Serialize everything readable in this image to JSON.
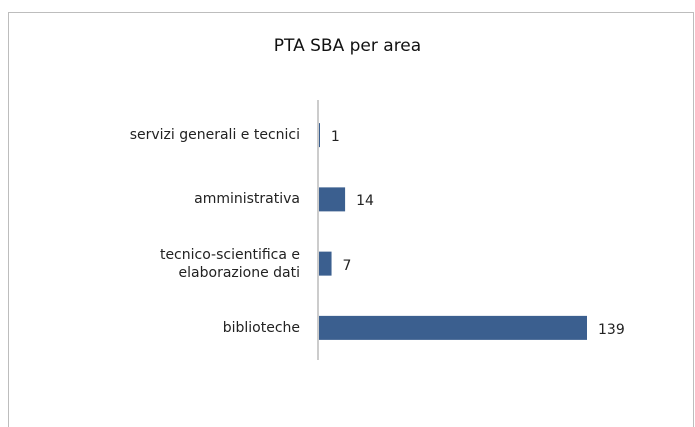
{
  "chart_data": {
    "type": "bar",
    "orientation": "horizontal",
    "title": "PTA SBA per area",
    "categories": [
      "servizi generali e tecnici",
      "amministrativa",
      "tecnico-scientifica e\nelaborazione dati",
      "biblioteche"
    ],
    "values": [
      1,
      14,
      7,
      139
    ],
    "color": "#3b5f8f"
  }
}
